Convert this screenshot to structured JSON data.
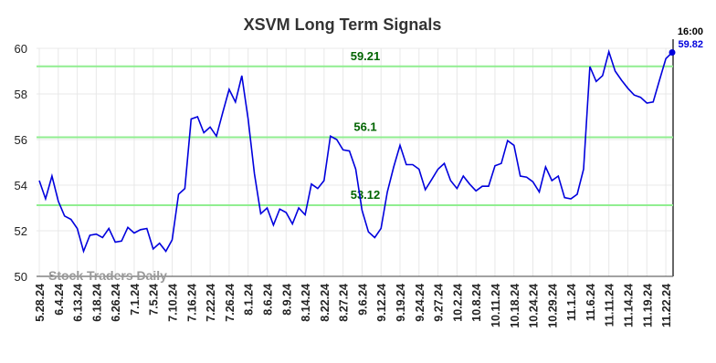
{
  "chart_data": {
    "type": "line",
    "title": "XSVM Long Term Signals",
    "watermark": "Stock Traders Daily",
    "last_time_label": "16:00",
    "color": "#0000dd",
    "categories": [
      "5.28.24",
      null,
      null,
      "6.4.24",
      null,
      null,
      "6.13.24",
      null,
      null,
      "6.18.24",
      null,
      null,
      "6.26.24",
      null,
      null,
      "7.1.24",
      null,
      null,
      "7.5.24",
      null,
      null,
      "7.10.24",
      null,
      null,
      "7.16.24",
      null,
      null,
      "7.22.24",
      null,
      null,
      "7.26.24",
      null,
      null,
      "8.1.24",
      null,
      null,
      "8.6.24",
      null,
      null,
      "8.9.24",
      null,
      null,
      "8.14.24",
      null,
      null,
      "8.22.24",
      null,
      null,
      "8.27.24",
      null,
      null,
      "9.6.24",
      null,
      null,
      "9.12.24",
      null,
      null,
      "9.19.24",
      null,
      null,
      "9.24.24",
      null,
      null,
      "9.27.24",
      null,
      null,
      "10.2.24",
      null,
      null,
      "10.8.24",
      null,
      null,
      "10.11.24",
      null,
      null,
      "10.18.24",
      null,
      null,
      "10.24.24",
      null,
      null,
      "10.29.24",
      null,
      null,
      "11.1.24",
      null,
      null,
      "11.6.24",
      null,
      null,
      "11.11.24",
      null,
      null,
      "11.14.24",
      null,
      null,
      "11.19.24",
      null,
      null,
      "11.22.24",
      null
    ],
    "values": [
      54.2,
      53.4,
      54.4,
      53.3,
      52.65,
      52.5,
      52.1,
      51.1,
      51.8,
      51.85,
      51.7,
      52.1,
      51.5,
      51.55,
      52.15,
      51.9,
      52.05,
      52.1,
      51.2,
      51.45,
      51.1,
      51.6,
      53.6,
      53.85,
      56.9,
      57.0,
      56.3,
      56.55,
      56.15,
      57.2,
      58.2,
      57.65,
      58.8,
      56.9,
      54.5,
      52.75,
      53.0,
      52.25,
      52.95,
      52.8,
      52.3,
      53.0,
      52.7,
      54.05,
      53.85,
      54.2,
      56.15,
      56.0,
      55.55,
      55.5,
      54.7,
      52.9,
      51.95,
      51.7,
      52.1,
      53.7,
      54.8,
      55.75,
      54.9,
      54.9,
      54.7,
      53.8,
      54.25,
      54.7,
      54.95,
      54.2,
      53.85,
      54.4,
      54.05,
      53.75,
      53.95,
      53.95,
      54.85,
      54.95,
      55.95,
      55.75,
      54.4,
      54.35,
      54.15,
      53.7,
      54.8,
      54.2,
      54.4,
      53.45,
      53.4,
      53.6,
      54.7,
      59.2,
      58.55,
      58.8,
      59.85,
      59.0,
      58.6,
      58.25,
      57.95,
      57.85,
      57.6,
      57.65,
      58.6,
      59.55,
      59.82
    ],
    "reference_lines": [
      59.21,
      56.1,
      53.12
    ],
    "reference_color": "#90ee90",
    "ylim": [
      50,
      60
    ],
    "yticks": [
      50,
      52,
      54,
      56,
      58,
      60
    ],
    "grid": true
  }
}
